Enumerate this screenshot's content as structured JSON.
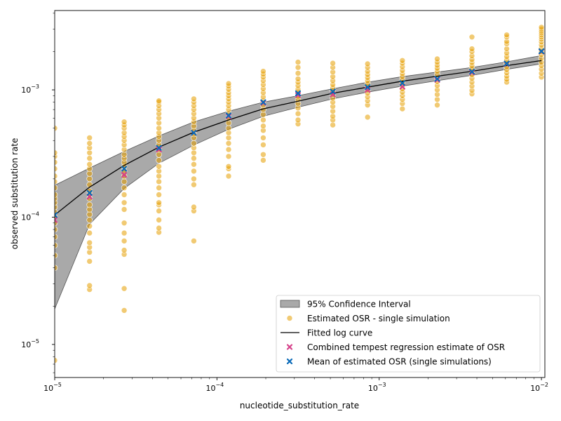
{
  "chart_data": {
    "type": "scatter",
    "title": "",
    "xlabel": "nucleotide_substitution_rate",
    "ylabel": "observed substitution rate",
    "xscale": "log",
    "yscale": "log",
    "xlim": [
      1e-05,
      0.0105
    ],
    "ylim": [
      5.5e-06,
      0.0042
    ],
    "grid": false,
    "legend_position": "lower right",
    "x_ticks": [
      {
        "value": 1e-05,
        "base": "10",
        "exp": "−5"
      },
      {
        "value": 0.0001,
        "base": "10",
        "exp": "−4"
      },
      {
        "value": 0.001,
        "base": "10",
        "exp": "−3"
      },
      {
        "value": 0.01,
        "base": "10",
        "exp": "−2"
      }
    ],
    "y_ticks": [
      {
        "value": 1e-05,
        "base": "10",
        "exp": "−5"
      },
      {
        "value": 0.0001,
        "base": "10",
        "exp": "−4"
      },
      {
        "value": 0.001,
        "base": "10",
        "exp": "−3"
      }
    ],
    "legend": [
      {
        "label": "95% Confidence Interval",
        "kind": "ci"
      },
      {
        "label": "Estimated OSR - single simulation",
        "kind": "points"
      },
      {
        "label": "Fitted log curve",
        "kind": "fit"
      },
      {
        "label": "Combined tempest regression estimate of OSR",
        "kind": "combined"
      },
      {
        "label": "Mean of estimated OSR (single simulations)",
        "kind": "mean"
      }
    ],
    "colors": {
      "points": "#e69f00",
      "ci_fill": "#a9a9a9",
      "ci_edge": "#555555",
      "fit": "#000000",
      "combined": "#d6418a",
      "mean": "#0a6ab8"
    },
    "x_values": [
      1e-05,
      1.64e-05,
      2.68e-05,
      4.39e-05,
      7.2e-05,
      0.000118,
      0.000193,
      0.000316,
      0.000518,
      0.000848,
      0.00139,
      0.00228,
      0.00373,
      0.00611,
      0.01
    ],
    "mean_osr": [
      0.000104,
      0.000155,
      0.00024,
      0.00035,
      0.00046,
      0.00063,
      0.0008,
      0.00094,
      0.00097,
      0.00105,
      0.00113,
      0.00122,
      0.00139,
      0.00161,
      0.00201
    ],
    "combined_osr": [
      9.5e-05,
      0.000145,
      0.000215,
      0.00034,
      0.00046,
      0.00062,
      0.00079,
      0.00091,
      0.00092,
      0.001,
      0.00106,
      0.0012,
      0.00137,
      0.0016,
      0.002
    ],
    "fitted_curve": [
      0.000104,
      0.000172,
      0.000255,
      0.000355,
      0.000465,
      0.00058,
      0.00071,
      0.000815,
      0.00094,
      0.00105,
      0.00117,
      0.00128,
      0.0014,
      0.00155,
      0.0017
    ],
    "ci_lower": [
      1.9e-05,
      8.8e-05,
      0.000168,
      0.000265,
      0.000368,
      0.00049,
      0.00062,
      0.00073,
      0.00085,
      0.00096,
      0.00107,
      0.00118,
      0.0013,
      0.00145,
      0.0016
    ],
    "ci_upper": [
      0.000178,
      0.000243,
      0.000328,
      0.000435,
      0.00056,
      0.00068,
      0.0008,
      0.0009,
      0.00102,
      0.00115,
      0.00127,
      0.00138,
      0.0015,
      0.00166,
      0.00186
    ],
    "single_simulations": [
      {
        "x": 1e-05,
        "y": [
          7.5e-06,
          4e-05,
          5e-05,
          6e-05,
          7e-05,
          8e-05,
          9e-05,
          0.0001,
          0.00011,
          0.00012,
          0.00013,
          0.00014,
          0.00015,
          0.00017,
          0.00019,
          0.00021,
          0.00024,
          0.00027,
          0.0003,
          0.00032,
          0.0005
        ]
      },
      {
        "x": 1.64e-05,
        "y": [
          2.7e-05,
          2.9e-05,
          4.5e-05,
          5.3e-05,
          5.8e-05,
          6.3e-05,
          7.5e-05,
          8.5e-05,
          9.5e-05,
          0.000105,
          0.000115,
          0.000125,
          0.00014,
          0.00015,
          0.00016,
          0.00018,
          0.0002,
          0.00022,
          0.00024,
          0.00026,
          0.00029,
          0.00032,
          0.00035,
          0.00038,
          0.00042
        ]
      },
      {
        "x": 2.68e-05,
        "y": [
          1.85e-05,
          2.75e-05,
          5.1e-05,
          5.5e-05,
          6.5e-05,
          7.5e-05,
          9e-05,
          0.000115,
          0.00013,
          0.00015,
          0.00017,
          0.00019,
          0.00021,
          0.00023,
          0.00025,
          0.00027,
          0.00029,
          0.00031,
          0.00034,
          0.00037,
          0.0004,
          0.00043,
          0.00046,
          0.0005,
          0.00053,
          0.00056
        ]
      },
      {
        "x": 4.39e-05,
        "y": [
          7.6e-05,
          8.2e-05,
          9.5e-05,
          0.000112,
          0.000125,
          0.00013,
          0.00015,
          0.00017,
          0.00019,
          0.00021,
          0.00023,
          0.00025,
          0.00028,
          0.00031,
          0.00034,
          0.00037,
          0.0004,
          0.00043,
          0.00046,
          0.0005,
          0.00055,
          0.0006,
          0.00065,
          0.0007,
          0.00075,
          0.0008,
          0.00082
        ]
      },
      {
        "x": 7.2e-05,
        "y": [
          6.5e-05,
          0.000112,
          0.00012,
          0.00018,
          0.0002,
          0.00023,
          0.00026,
          0.00029,
          0.00032,
          0.00035,
          0.00038,
          0.00042,
          0.00045,
          0.00048,
          0.00052,
          0.00056,
          0.0006,
          0.00065,
          0.0007,
          0.00075,
          0.0008,
          0.00085
        ]
      },
      {
        "x": 0.000118,
        "y": [
          0.00021,
          0.00024,
          0.00025,
          0.0003,
          0.00034,
          0.00038,
          0.00042,
          0.00046,
          0.0005,
          0.00055,
          0.0006,
          0.00065,
          0.0007,
          0.00075,
          0.0008,
          0.00085,
          0.0009,
          0.00095,
          0.00101,
          0.00107,
          0.00112
        ]
      },
      {
        "x": 0.000193,
        "y": [
          0.00028,
          0.00031,
          0.00037,
          0.00042,
          0.00048,
          0.00052,
          0.00058,
          0.00064,
          0.0007,
          0.00076,
          0.00082,
          0.00088,
          0.00095,
          0.00102,
          0.0011,
          0.00118,
          0.00126,
          0.00133,
          0.0014
        ]
      },
      {
        "x": 0.000316,
        "y": [
          0.00054,
          0.00058,
          0.00065,
          0.00072,
          0.00078,
          0.00084,
          0.00089,
          0.00095,
          0.00101,
          0.00108,
          0.00115,
          0.00122,
          0.00135,
          0.0015,
          0.00165
        ]
      },
      {
        "x": 0.000518,
        "y": [
          0.00053,
          0.00058,
          0.00062,
          0.00068,
          0.00074,
          0.0008,
          0.00086,
          0.00092,
          0.00098,
          0.00104,
          0.0011,
          0.00118,
          0.00127,
          0.00138,
          0.0015,
          0.00162
        ]
      },
      {
        "x": 0.000848,
        "y": [
          0.00061,
          0.00076,
          0.00082,
          0.00088,
          0.00094,
          0.001,
          0.00106,
          0.00112,
          0.00118,
          0.00125,
          0.00132,
          0.0014,
          0.0015,
          0.0016
        ]
      },
      {
        "x": 0.00139,
        "y": [
          0.00071,
          0.00078,
          0.00084,
          0.0009,
          0.00096,
          0.00102,
          0.00108,
          0.00114,
          0.0012,
          0.00127,
          0.00134,
          0.00142,
          0.00152,
          0.00162,
          0.0017
        ]
      },
      {
        "x": 0.00228,
        "y": [
          0.00076,
          0.00084,
          0.00092,
          0.001,
          0.00108,
          0.00116,
          0.00124,
          0.00132,
          0.0014,
          0.00148,
          0.00156,
          0.00165,
          0.00175
        ]
      },
      {
        "x": 0.00373,
        "y": [
          0.00093,
          0.00099,
          0.00107,
          0.00115,
          0.00123,
          0.00131,
          0.00139,
          0.00147,
          0.00155,
          0.00164,
          0.00173,
          0.00185,
          0.002,
          0.0021,
          0.0026
        ]
      },
      {
        "x": 0.00611,
        "y": [
          0.00115,
          0.00121,
          0.00128,
          0.00136,
          0.00144,
          0.00152,
          0.00162,
          0.00172,
          0.00183,
          0.00195,
          0.0021,
          0.0023,
          0.0024,
          0.0026,
          0.0027
        ]
      },
      {
        "x": 0.01,
        "y": [
          0.00126,
          0.00135,
          0.00145,
          0.00155,
          0.00165,
          0.00177,
          0.00189,
          0.002,
          0.00212,
          0.00225,
          0.00238,
          0.0025,
          0.0026,
          0.0027,
          0.0028,
          0.0029,
          0.003,
          0.0031
        ]
      }
    ]
  }
}
